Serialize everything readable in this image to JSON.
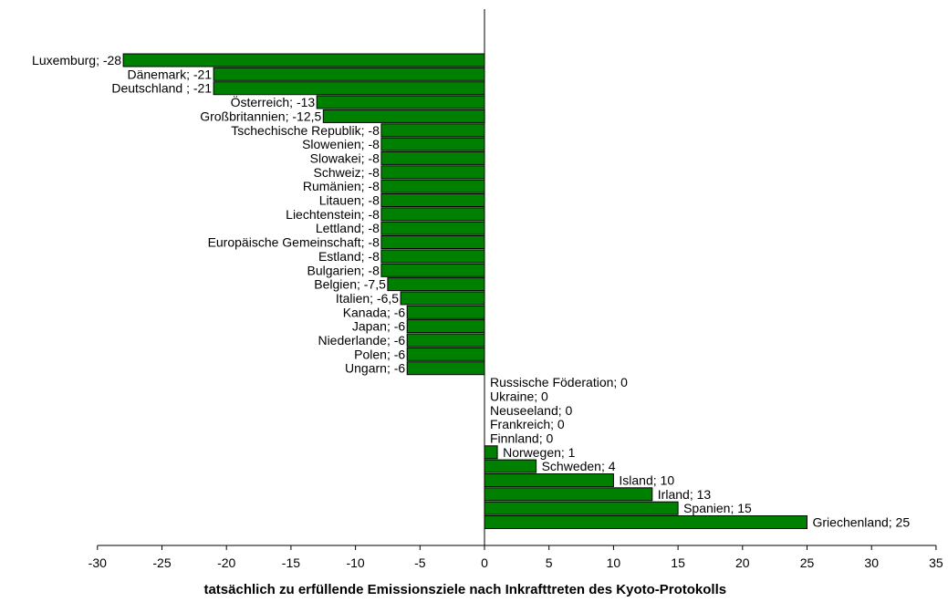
{
  "chart_data": {
    "type": "bar",
    "orientation": "horizontal",
    "xlabel": "tatsächlich zu erfüllende Emissionsziele nach Inkrafttreten des Kyoto-Protokolls",
    "xlim": [
      -30,
      35
    ],
    "xticks": [
      -30,
      -25,
      -20,
      -15,
      -10,
      -5,
      0,
      5,
      10,
      15,
      20,
      25,
      30,
      35
    ],
    "grid": false,
    "bar_color": "#008000",
    "series": [
      {
        "categories": [
          "Luxemburg",
          "Dänemark",
          "Deutschland",
          "Österreich",
          "Großbritannien",
          "Tschechische Republik",
          "Slowenien",
          "Slowakei",
          "Schweiz",
          "Rumänien",
          "Litauen",
          "Liechtenstein",
          "Lettland",
          "Europäische Gemeinschaft",
          "Estland",
          "Bulgarien",
          "Belgien",
          "Italien",
          "Kanada",
          "Japan",
          "Niederlande",
          "Polen",
          "Ungarn",
          "Russische Föderation",
          "Ukraine",
          "Neuseeland",
          "Frankreich",
          "Finnland",
          "Norwegen",
          "Schweden",
          "Island",
          "Irland",
          "Spanien",
          "Griechenland"
        ],
        "values": [
          -28,
          -21,
          -21,
          -13,
          -12.5,
          -8,
          -8,
          -8,
          -8,
          -8,
          -8,
          -8,
          -8,
          -8,
          -8,
          -8,
          -7.5,
          -6.5,
          -6,
          -6,
          -6,
          -6,
          -6,
          0,
          0,
          0,
          0,
          0,
          1,
          4,
          10,
          13,
          15,
          25
        ],
        "labels": [
          "Luxemburg; -28",
          "Dänemark; -21",
          "Deutschland ; -21",
          "Österreich; -13",
          "Großbritannien; -12,5",
          "Tschechische Republik; -8",
          "Slowenien; -8",
          "Slowakei; -8",
          "Schweiz; -8",
          "Rumänien; -8",
          "Litauen; -8",
          "Liechtenstein; -8",
          "Lettland; -8",
          "Europäische Gemeinschaft; -8",
          "Estland; -8",
          "Bulgarien; -8",
          "Belgien; -7,5",
          "Italien; -6,5",
          "Kanada; -6",
          "Japan; -6",
          "Niederlande; -6",
          "Polen; -6",
          "Ungarn; -6",
          "Russische Föderation; 0",
          "Ukraine; 0",
          "Neuseeland; 0",
          "Frankreich; 0",
          "Finnland; 0",
          "Norwegen; 1",
          "Schweden; 4",
          "Island; 10",
          "Irland; 13",
          "Spanien; 15",
          "Griechenland; 25"
        ]
      }
    ]
  }
}
